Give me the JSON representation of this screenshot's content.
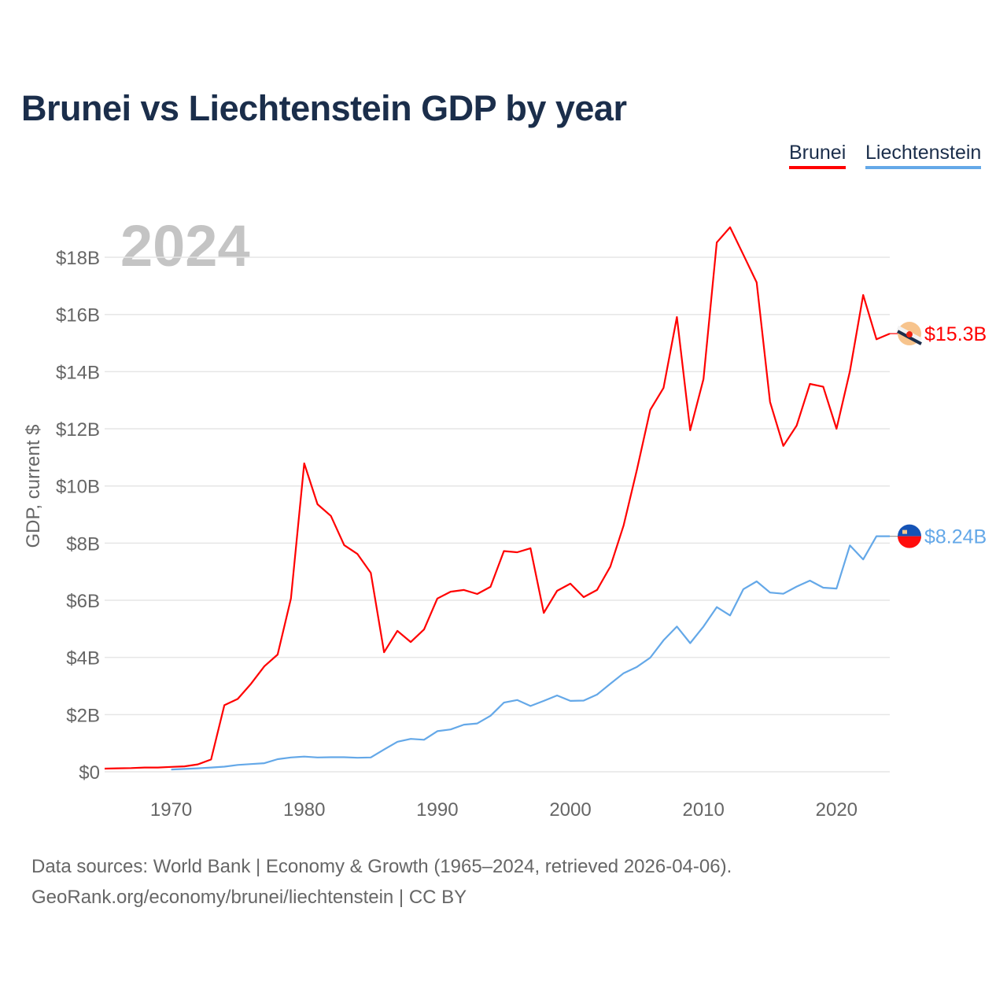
{
  "chart_data": {
    "type": "line",
    "title": "Brunei vs Liechtenstein GDP by year",
    "ylabel": "GDP, current $",
    "xlabel": "",
    "year_watermark": "2024",
    "xlim": [
      1965,
      2024
    ],
    "ylim": [
      0,
      19.5
    ],
    "grid": true,
    "legend_placement": "top-right",
    "x_ticks": [
      1970,
      1980,
      1990,
      2000,
      2010,
      2020
    ],
    "y_ticks": [
      0,
      2,
      4,
      6,
      8,
      10,
      12,
      14,
      16,
      18
    ],
    "y_tick_labels": [
      "$0",
      "$2B",
      "$4B",
      "$6B",
      "$8B",
      "$10B",
      "$12B",
      "$14B",
      "$16B",
      "$18B"
    ],
    "series": [
      {
        "name": "Brunei",
        "color": "#ff0000",
        "end_label": "$15.3B",
        "flag_icon": "brunei-flag",
        "start_year": 1965,
        "values": [
          0.11,
          0.12,
          0.13,
          0.15,
          0.15,
          0.17,
          0.19,
          0.26,
          0.43,
          2.33,
          2.55,
          3.08,
          3.69,
          4.1,
          6.06,
          10.79,
          9.36,
          8.95,
          7.93,
          7.62,
          6.96,
          4.18,
          4.93,
          4.54,
          4.98,
          6.06,
          6.3,
          6.36,
          6.22,
          6.47,
          7.72,
          7.68,
          7.82,
          5.56,
          6.33,
          6.58,
          6.11,
          6.36,
          7.18,
          8.62,
          10.57,
          12.66,
          13.43,
          15.91,
          11.95,
          13.74,
          18.52,
          19.05,
          18.09,
          17.12,
          12.94,
          11.4,
          12.11,
          13.57,
          13.47,
          12.0,
          14.01,
          16.68,
          15.13,
          15.33
        ]
      },
      {
        "name": "Liechtenstein",
        "color": "#64a8e8",
        "end_label": "$8.24B",
        "flag_icon": "liechtenstein-flag",
        "start_year": 1970,
        "values": [
          0.08,
          0.1,
          0.12,
          0.15,
          0.18,
          0.24,
          0.27,
          0.3,
          0.44,
          0.5,
          0.53,
          0.5,
          0.51,
          0.51,
          0.49,
          0.5,
          0.78,
          1.05,
          1.15,
          1.12,
          1.42,
          1.48,
          1.65,
          1.69,
          1.96,
          2.42,
          2.51,
          2.3,
          2.48,
          2.67,
          2.48,
          2.49,
          2.7,
          3.08,
          3.45,
          3.67,
          3.99,
          4.6,
          5.08,
          4.5,
          5.08,
          5.76,
          5.47,
          6.39,
          6.66,
          6.27,
          6.23,
          6.48,
          6.69,
          6.44,
          6.41,
          7.92,
          7.43,
          8.24,
          8.24
        ]
      }
    ]
  },
  "footer": {
    "line1": "Data sources: World Bank | Economy & Growth (1965–2024, retrieved 2026-04-06).",
    "line2": "GeoRank.org/economy/brunei/liechtenstein | CC BY"
  }
}
